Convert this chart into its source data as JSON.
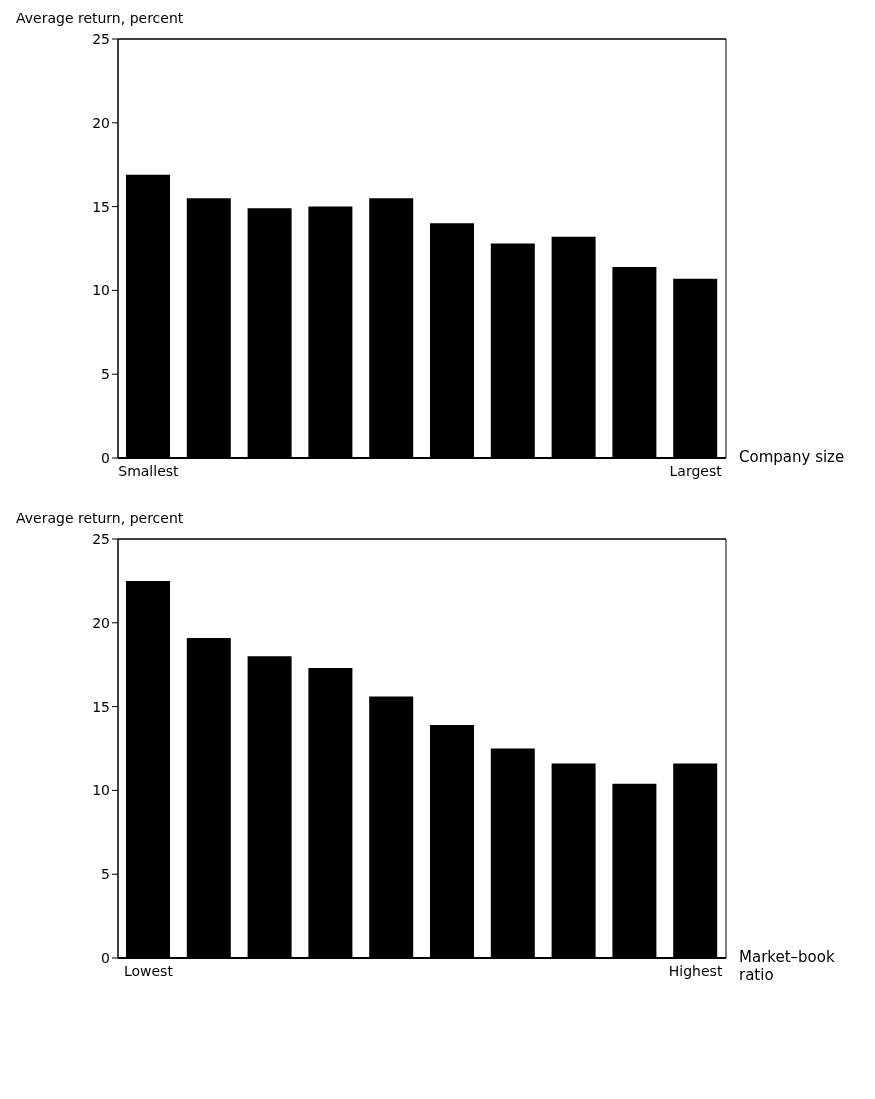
{
  "chart_data": [
    {
      "type": "bar",
      "ylabel": "Average return, percent",
      "xlabel": "Company size",
      "categories": [
        "Smallest",
        null,
        null,
        null,
        null,
        null,
        null,
        null,
        null,
        "Largest"
      ],
      "values": [
        16.9,
        15.5,
        14.9,
        15.0,
        15.5,
        14.0,
        12.8,
        13.2,
        11.4,
        10.7
      ],
      "color": "#000000",
      "ylim": [
        0,
        25
      ],
      "yticks": [
        0,
        5,
        10,
        15,
        20,
        25
      ],
      "grid": false,
      "legend": false
    },
    {
      "type": "bar",
      "ylabel": "Average return, percent",
      "xlabel": "Market–book ratio",
      "categories": [
        "Lowest",
        null,
        null,
        null,
        null,
        null,
        null,
        null,
        null,
        "Highest"
      ],
      "values": [
        22.5,
        19.1,
        18.0,
        17.3,
        15.6,
        13.9,
        12.5,
        11.6,
        10.4,
        11.6
      ],
      "color": "#000000",
      "ylim": [
        0,
        25
      ],
      "yticks": [
        0,
        5,
        10,
        15,
        20,
        25
      ],
      "grid": false,
      "legend": false
    }
  ]
}
